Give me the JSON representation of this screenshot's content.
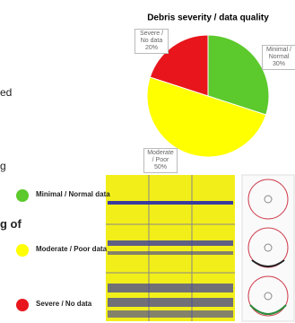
{
  "chart_data": {
    "type": "pie",
    "title": "Debris severity / data quality",
    "categories": [
      "Minimal / Normal",
      "Moderate / Poor",
      "Severe / No data"
    ],
    "values": [
      30,
      50,
      20
    ],
    "value_labels": [
      "30%",
      "50%",
      "20%"
    ],
    "colors": [
      "#5cc92c",
      "#ffff00",
      "#e8161c"
    ]
  },
  "page": {
    "fragments": [
      "ed",
      "g",
      "g of"
    ],
    "legend": [
      {
        "label": "Minimal / Normal data",
        "color": "#5cc92c"
      },
      {
        "label": "Moderate / Poor data",
        "color": "#ffff00"
      },
      {
        "label": "Severe / No data",
        "color": "#e8161c"
      }
    ]
  }
}
